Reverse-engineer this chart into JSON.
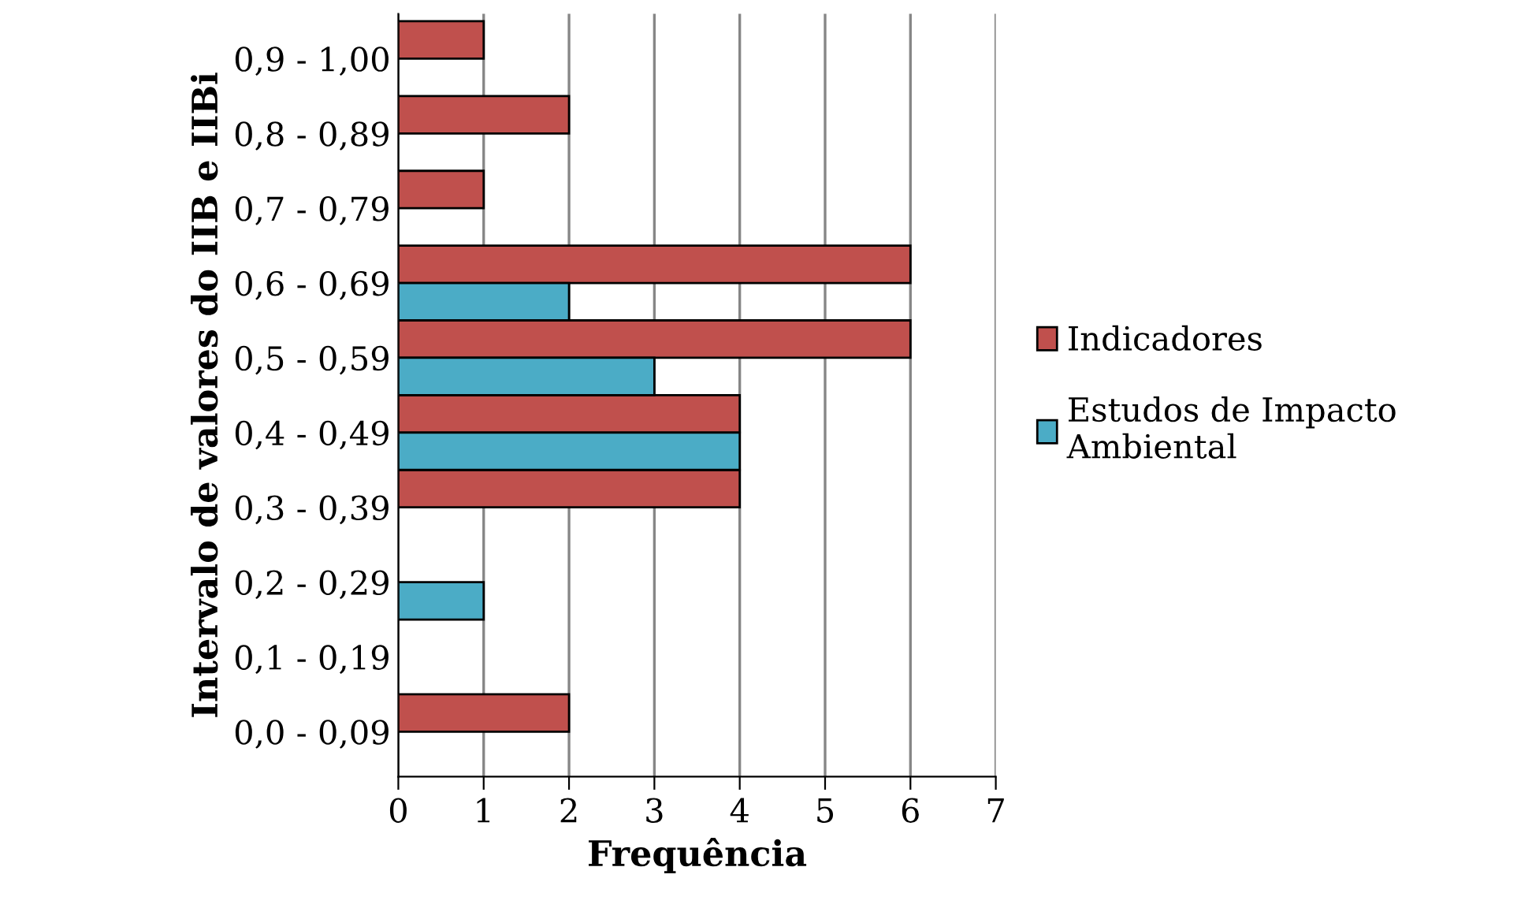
{
  "chart_data": {
    "type": "bar",
    "orientation": "horizontal",
    "xlabel": "Frequência",
    "ylabel": "Intervalo de valores do IIB e IIBi",
    "categories": [
      "0,9 - 1,00",
      "0,8 - 0,89",
      "0,7 - 0,79",
      "0,6 - 0,69",
      "0,5 - 0,59",
      "0,4 - 0,49",
      "0,3 - 0,39",
      "0,2 - 0,29",
      "0,1 - 0,19",
      "0,0 - 0,09"
    ],
    "series": [
      {
        "name": "Indicadores",
        "color": "#c0504d",
        "values": [
          1,
          2,
          1,
          6,
          6,
          4,
          4,
          null,
          null,
          2
        ]
      },
      {
        "name": "Estudos de Impacto Ambiental",
        "color": "#4bacc6",
        "values": [
          null,
          null,
          null,
          2,
          3,
          4,
          null,
          1,
          null,
          null
        ]
      }
    ],
    "xlim": [
      0,
      7
    ],
    "xticks": [
      0,
      1,
      2,
      3,
      4,
      5,
      6,
      7
    ],
    "grid": "x",
    "legend": "right"
  }
}
